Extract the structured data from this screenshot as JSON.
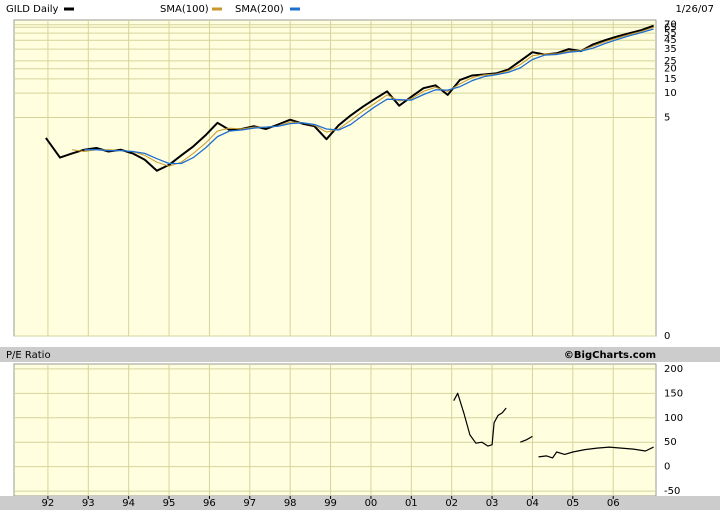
{
  "chart_data": [
    {
      "type": "line",
      "log_scale": true,
      "grid": true,
      "date": "1/26/07",
      "legend": "top",
      "x": [
        1991.95,
        1992.3,
        1992.6,
        1992.9,
        1993.2,
        1993.5,
        1993.8,
        1994.1,
        1994.4,
        1994.7,
        1995.0,
        1995.3,
        1995.6,
        1995.9,
        1996.2,
        1996.5,
        1996.8,
        1997.1,
        1997.4,
        1997.7,
        1998.0,
        1998.3,
        1998.6,
        1998.9,
        1999.2,
        1999.5,
        1999.8,
        2000.1,
        2000.4,
        2000.7,
        2001.0,
        2001.3,
        2001.6,
        2001.9,
        2002.2,
        2002.5,
        2002.8,
        2003.1,
        2003.4,
        2003.7,
        2004.0,
        2004.3,
        2004.6,
        2004.9,
        2005.2,
        2005.5,
        2005.8,
        2006.1,
        2006.4,
        2006.7,
        2007.0
      ],
      "series": [
        {
          "name": "GILD Daily",
          "color": "#000000",
          "width": 2,
          "values": [
            2.8,
            1.6,
            1.8,
            2.0,
            2.1,
            1.9,
            2.0,
            1.8,
            1.5,
            1.1,
            1.3,
            1.7,
            2.2,
            3.0,
            4.3,
            3.5,
            3.6,
            3.9,
            3.6,
            4.1,
            4.7,
            4.2,
            3.9,
            2.7,
            4.0,
            5.3,
            6.8,
            8.5,
            10.5,
            7.0,
            9.0,
            11.5,
            12.5,
            9.5,
            14.5,
            16.5,
            17.0,
            17.5,
            19.5,
            25.0,
            32.0,
            30.0,
            31.0,
            35.0,
            33.0,
            40.0,
            45.0,
            50.0,
            55.0,
            60.0,
            68.0
          ]
        },
        {
          "name": "SMA(100)",
          "color": "#c8962a",
          "width": 1,
          "values": [
            null,
            null,
            2.0,
            1.9,
            2.0,
            2.0,
            1.95,
            1.9,
            1.7,
            1.4,
            1.25,
            1.4,
            1.8,
            2.4,
            3.4,
            3.7,
            3.6,
            3.8,
            3.8,
            3.9,
            4.4,
            4.3,
            4.0,
            3.3,
            3.6,
            4.6,
            6.0,
            7.5,
            9.5,
            8.0,
            8.5,
            10.5,
            11.8,
            10.5,
            13.0,
            15.5,
            16.8,
            17.2,
            18.8,
            22.5,
            29.0,
            30.5,
            30.5,
            33.0,
            33.5,
            38.0,
            43.0,
            48.0,
            53.0,
            58.0,
            65.0
          ]
        },
        {
          "name": "SMA(200)",
          "color": "#1f6fd0",
          "width": 1.3,
          "values": [
            null,
            null,
            null,
            2.0,
            2.0,
            1.95,
            1.95,
            1.9,
            1.8,
            1.55,
            1.35,
            1.35,
            1.6,
            2.1,
            2.9,
            3.4,
            3.5,
            3.7,
            3.8,
            3.9,
            4.2,
            4.3,
            4.1,
            3.6,
            3.5,
            4.1,
            5.3,
            6.8,
            8.4,
            8.3,
            8.2,
            9.6,
            11.0,
            10.9,
            12.0,
            14.2,
            16.0,
            16.9,
            18.0,
            20.5,
            26.0,
            29.5,
            30.0,
            32.0,
            33.0,
            36.0,
            41.0,
            46.0,
            51.0,
            56.0,
            62.0
          ]
        }
      ],
      "xlim": [
        1991.16,
        2007.06
      ],
      "ylim": [
        0.01,
        80
      ],
      "yticks": [
        70,
        65,
        55,
        45,
        35,
        25,
        20,
        15,
        10,
        5,
        {
          "value": 0.01,
          "label": "0"
        }
      ]
    },
    {
      "type": "line",
      "grid": true,
      "title": "P/E Ratio",
      "credit": "©BigCharts.com",
      "x": [
        2002.05,
        2002.15,
        2002.3,
        2002.45,
        2002.6,
        2002.75,
        2002.9,
        2003.0,
        2003.05,
        2003.15,
        2003.25,
        2003.35,
        2003.5,
        2003.7,
        2003.85,
        2004.0,
        2004.05,
        2004.15,
        2004.35,
        2004.5,
        2004.6,
        2004.8,
        2005.0,
        2005.3,
        2005.6,
        2005.9,
        2006.2,
        2006.5,
        2006.8,
        2007.0
      ],
      "series": [
        {
          "name": "P/E Ratio",
          "color": "#000000",
          "width": 1.2,
          "values": [
            135,
            150,
            110,
            65,
            48,
            50,
            42,
            45,
            90,
            105,
            110,
            120,
            null,
            50,
            55,
            62,
            null,
            20,
            22,
            18,
            30,
            25,
            30,
            35,
            38,
            40,
            38,
            36,
            32,
            40
          ]
        }
      ],
      "xlim": [
        1991.16,
        2007.06
      ],
      "ylim": [
        -60,
        210
      ],
      "yticks": [
        200,
        150,
        100,
        50,
        0,
        -50
      ],
      "xticks": [
        {
          "value": 1992,
          "label": "92"
        },
        {
          "value": 1993,
          "label": "93"
        },
        {
          "value": 1994,
          "label": "94"
        },
        {
          "value": 1995,
          "label": "95"
        },
        {
          "value": 1996,
          "label": "96"
        },
        {
          "value": 1997,
          "label": "97"
        },
        {
          "value": 1998,
          "label": "98"
        },
        {
          "value": 1999,
          "label": "99"
        },
        {
          "value": 2000,
          "label": "00"
        },
        {
          "value": 2001,
          "label": "01"
        },
        {
          "value": 2002,
          "label": "02"
        },
        {
          "value": 2003,
          "label": "03"
        },
        {
          "value": 2004,
          "label": "04"
        },
        {
          "value": 2005,
          "label": "05"
        },
        {
          "value": 2006,
          "label": "06"
        }
      ]
    }
  ]
}
